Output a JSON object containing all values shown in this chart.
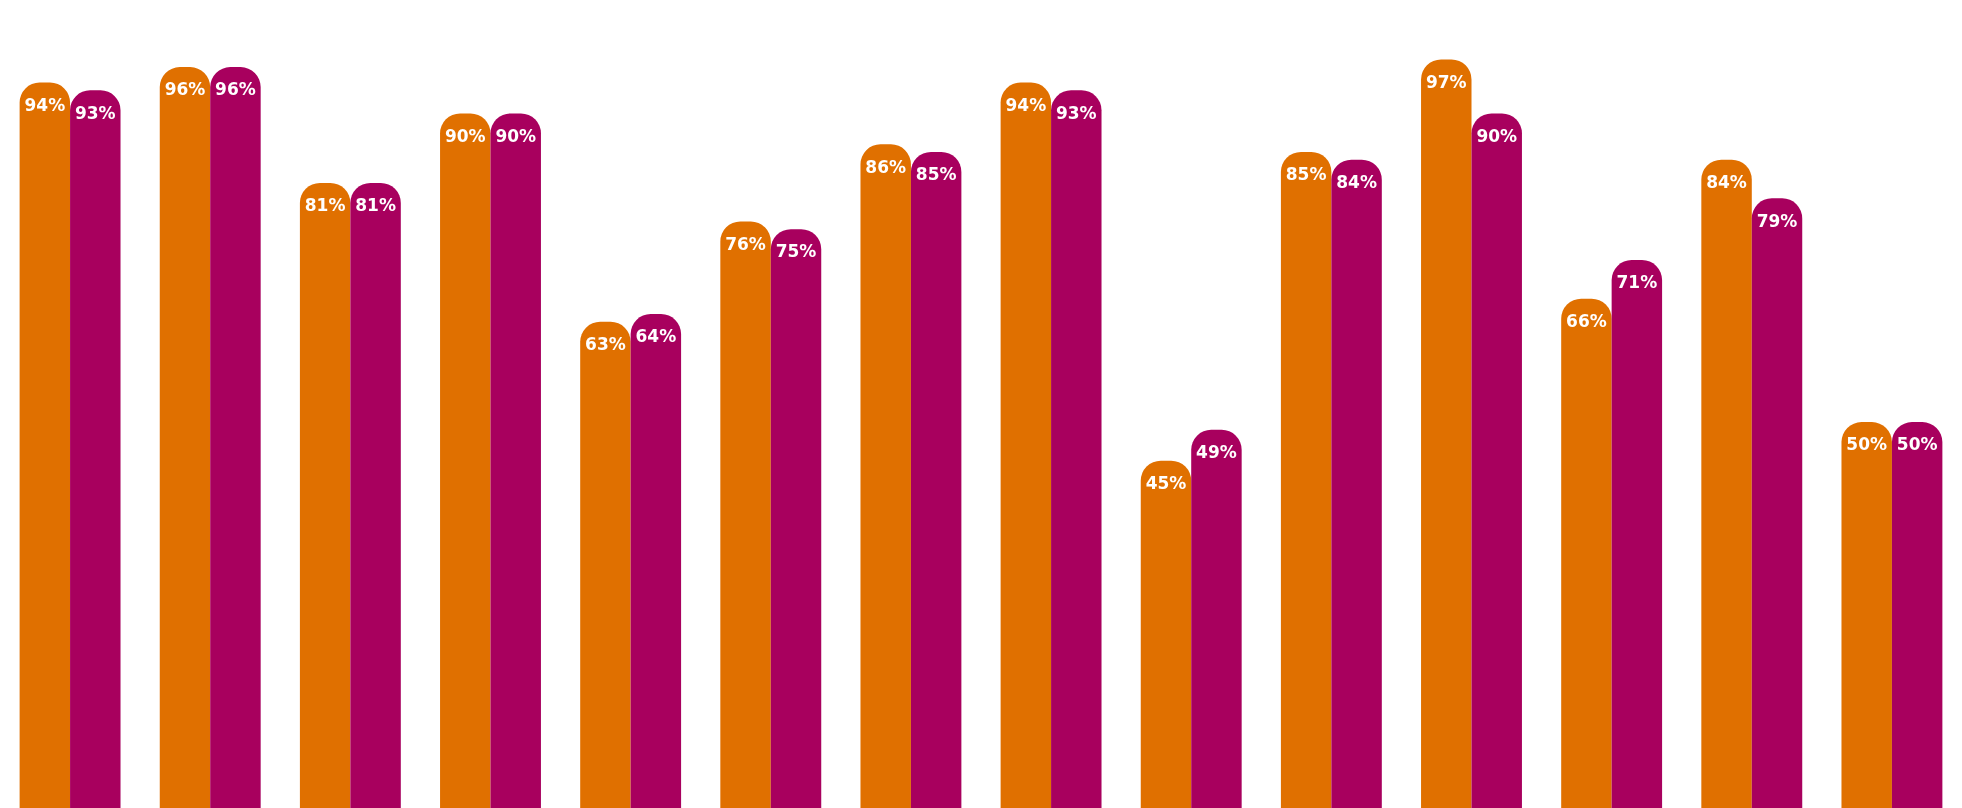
{
  "chart_data": {
    "type": "bar",
    "categories": [
      null,
      null,
      null,
      null,
      null,
      null,
      null,
      null,
      null,
      null,
      null,
      null,
      null,
      null
    ],
    "tick_labels": false,
    "series": [
      {
        "color": "#e07000",
        "values": [
          94,
          96,
          81,
          90,
          63,
          76,
          86,
          94,
          45,
          85,
          97,
          66,
          84,
          50
        ],
        "value_labels": [
          "94%",
          "96%",
          "81%",
          "90%",
          "63%",
          "76%",
          "86%",
          "94%",
          "45%",
          "85%",
          "97%",
          "66%",
          "84%",
          "50%"
        ]
      },
      {
        "color": "#a8005e",
        "values": [
          93,
          96,
          81,
          90,
          64,
          75,
          85,
          93,
          49,
          84,
          90,
          71,
          79,
          50
        ],
        "value_labels": [
          "93%",
          "96%",
          "81%",
          "90%",
          "64%",
          "75%",
          "85%",
          "93%",
          "49%",
          "84%",
          "90%",
          "71%",
          "79%",
          "50%"
        ]
      }
    ]
  }
}
